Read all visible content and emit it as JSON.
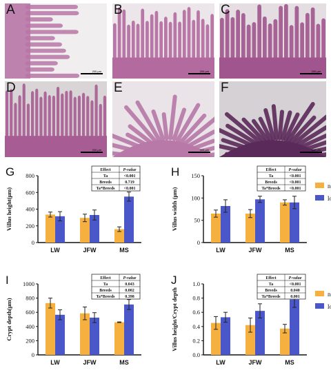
{
  "figure": {
    "micrographs": [
      {
        "letter": "A",
        "scale": "200 µm",
        "tissue": "#b876a6",
        "bg": "#f1eef0"
      },
      {
        "letter": "B",
        "scale": "200 µm",
        "tissue": "#b26a9f",
        "bg": "#ece6ea"
      },
      {
        "letter": "C",
        "scale": "200 µm",
        "tissue": "#a0558e",
        "bg": "#e4dde1"
      },
      {
        "letter": "D",
        "scale": "200 µm",
        "tissue": "#a75c94",
        "bg": "#d9d4d6"
      },
      {
        "letter": "E",
        "scale": "200 µm",
        "tissue": "#b878a8",
        "bg": "#eae4e8"
      },
      {
        "letter": "F",
        "scale": "200 µm",
        "tissue": "#5a2a5a",
        "bg": "#d6d1d4"
      }
    ],
    "legend": [
      {
        "label": "normal Ta",
        "color": "#f5b040"
      },
      {
        "label": "low Ta",
        "color": "#4a57c8"
      }
    ]
  },
  "chart_data": [
    {
      "letter": "G",
      "type": "bar",
      "categories": [
        "LW",
        "JFW",
        "MS"
      ],
      "ylabel": "Villus height(μm)",
      "ylim": [
        0,
        800
      ],
      "yticks": [
        0,
        200,
        400,
        600,
        800
      ],
      "series": [
        {
          "name": "normal Ta",
          "values": [
            335,
            295,
            160
          ],
          "errors": [
            30,
            45,
            28
          ]
        },
        {
          "name": "low Ta",
          "values": [
            315,
            330,
            550
          ],
          "errors": [
            55,
            60,
            55
          ]
        }
      ],
      "stats": {
        "header": [
          "Effect",
          "P-value"
        ],
        "rows": [
          [
            "Ta",
            "<0.001"
          ],
          [
            "Breeds",
            "0.719"
          ],
          [
            "Ta*Breeds",
            "<0.001"
          ]
        ]
      }
    },
    {
      "letter": "H",
      "type": "bar",
      "categories": [
        "LW",
        "JFW",
        "MS"
      ],
      "ylabel": "Villus width (μm)",
      "ylim": [
        0,
        150
      ],
      "yticks": [
        0,
        50,
        100,
        150
      ],
      "series": [
        {
          "name": "normal Ta",
          "values": [
            65,
            65,
            90
          ],
          "errors": [
            8,
            9,
            6
          ]
        },
        {
          "name": "low Ta",
          "values": [
            82,
            97,
            90
          ],
          "errors": [
            14,
            7,
            14
          ]
        }
      ],
      "stats": {
        "header": [
          "Effect",
          "P-value"
        ],
        "rows": [
          [
            "Ta",
            "<0.001"
          ],
          [
            "Breeds",
            "<0.001"
          ],
          [
            "Ta*Breeds",
            "<0.001"
          ]
        ]
      }
    },
    {
      "letter": "I",
      "type": "bar",
      "categories": [
        "LW",
        "JFW",
        "MS"
      ],
      "ylabel": "Crypt depth(μm)",
      "ylim": [
        0,
        1000
      ],
      "yticks": [
        0,
        200,
        400,
        600,
        800,
        1000
      ],
      "series": [
        {
          "name": "normal Ta",
          "values": [
            730,
            585,
            460
          ],
          "errors": [
            70,
            90,
            5
          ]
        },
        {
          "name": "low Ta",
          "values": [
            565,
            525,
            710
          ],
          "errors": [
            70,
            70,
            70
          ]
        }
      ],
      "stats": {
        "header": [
          "Effect",
          "P-value"
        ],
        "rows": [
          [
            "Ta",
            "0.043"
          ],
          [
            "Breeds",
            "0.002"
          ],
          [
            "Ta*Breeds",
            "0.398"
          ]
        ]
      }
    },
    {
      "letter": "J",
      "type": "bar",
      "categories": [
        "LW",
        "JFW",
        "MS"
      ],
      "ylabel": "Villus height/Crypt depth",
      "ylim": [
        0,
        1.0
      ],
      "yticks": [
        "0.0",
        "0.2",
        "0.4",
        "0.6",
        "0.8",
        "1.0"
      ],
      "series": [
        {
          "name": "normal Ta",
          "values": [
            0.45,
            0.42,
            0.37
          ],
          "errors": [
            0.09,
            0.1,
            0.06
          ]
        },
        {
          "name": "low Ta",
          "values": [
            0.53,
            0.62,
            0.78
          ],
          "errors": [
            0.07,
            0.1,
            0.11
          ]
        }
      ],
      "stats": {
        "header": [
          "Effect",
          "P-value"
        ],
        "rows": [
          [
            "Ta",
            "<0.001"
          ],
          [
            "Breeds",
            "0.040"
          ],
          [
            "Ta*Breeds",
            "0.001"
          ]
        ]
      }
    }
  ]
}
